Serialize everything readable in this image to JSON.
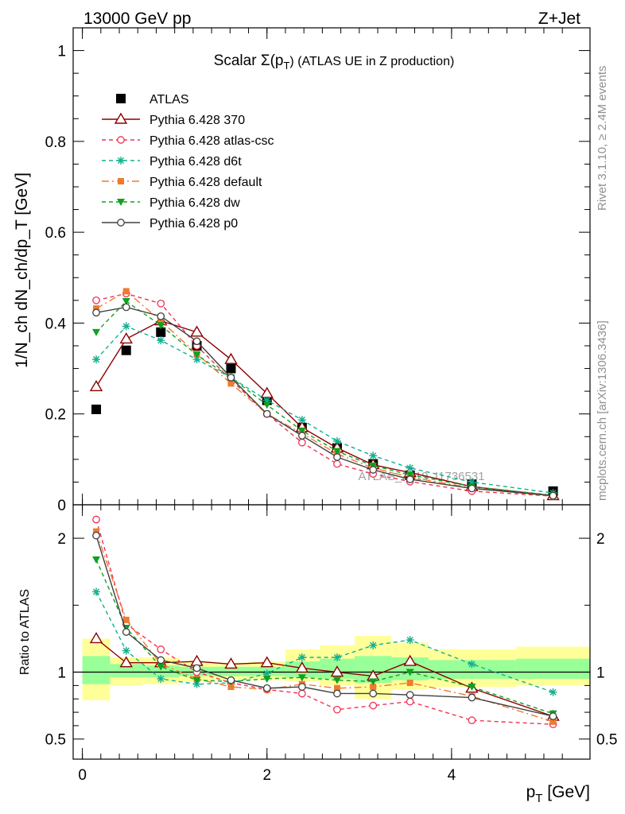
{
  "header": {
    "left": "13000 GeV pp",
    "right": "Z+Jet"
  },
  "side": {
    "rivet": "Rivet 3.1.10, ≥ 2.4M events",
    "mcplots": "mcplots.cern.ch [arXiv:1306.3436]"
  },
  "watermark": "ATLAS_2019_I1736531",
  "chart_data": [
    {
      "type": "scatter",
      "title": "Scalar Σ(p_T) (ATLAS UE in Z production)",
      "title_main": "Scalar Σ(p",
      "title_sub": "T",
      "title_tail": ") (ATLAS UE in Z production)",
      "ylabel": "1/N_ch dN_ch/dp_T [GeV]",
      "ylim": [
        0,
        1.05
      ],
      "xlim": [
        -0.1,
        5.5
      ],
      "yticks": [
        0,
        0.2,
        0.4,
        0.6,
        0.8,
        1
      ],
      "ytick_labels": [
        "0",
        "0.2",
        "0.4",
        "0.6",
        "0.8",
        "1"
      ],
      "legend_position": "top-left",
      "x": [
        0.15,
        0.475,
        0.85,
        1.24,
        1.61,
        2.0,
        2.38,
        2.76,
        3.15,
        3.55,
        4.22,
        5.1
      ],
      "series": [
        {
          "name": "ATLAS",
          "color": "#000000",
          "marker": "square",
          "line": "none",
          "values": [
            0.21,
            0.34,
            0.38,
            0.35,
            0.3,
            0.23,
            0.17,
            0.125,
            0.09,
            0.065,
            0.045,
            0.03
          ]
        },
        {
          "name": "Pythia 6.428 370",
          "color": "#8b0000",
          "marker": "open-triangle",
          "line": "solid",
          "values": [
            0.26,
            0.365,
            0.405,
            0.38,
            0.32,
            0.245,
            0.17,
            0.125,
            0.088,
            0.071,
            0.04,
            0.02
          ]
        },
        {
          "name": "Pythia 6.428 atlas-csc",
          "color": "#ee3355",
          "marker": "open-circle",
          "line": "dashed",
          "values": [
            0.45,
            0.465,
            0.443,
            0.35,
            0.275,
            0.2,
            0.137,
            0.09,
            0.068,
            0.051,
            0.03,
            0.019
          ]
        },
        {
          "name": "Pythia 6.428 d6t",
          "color": "#10b090",
          "marker": "star",
          "line": "dashed",
          "values": [
            0.32,
            0.393,
            0.362,
            0.32,
            0.28,
            0.23,
            0.187,
            0.14,
            0.108,
            0.081,
            0.05,
            0.026
          ]
        },
        {
          "name": "Pythia 6.428 default",
          "color": "#f07a30",
          "marker": "filled-square",
          "line": "dashdot",
          "values": [
            0.432,
            0.47,
            0.405,
            0.332,
            0.267,
            0.2,
            0.157,
            0.112,
            0.081,
            0.061,
            0.037,
            0.019
          ]
        },
        {
          "name": "Pythia 6.428 dw",
          "color": "#10a020",
          "marker": "filled-triangle-down",
          "line": "dashed",
          "values": [
            0.38,
            0.448,
            0.395,
            0.33,
            0.28,
            0.22,
            0.163,
            0.118,
            0.086,
            0.066,
            0.04,
            0.021
          ]
        },
        {
          "name": "Pythia 6.428 p0",
          "color": "#404040",
          "marker": "open-circle",
          "line": "solid",
          "values": [
            0.423,
            0.435,
            0.415,
            0.36,
            0.28,
            0.2,
            0.152,
            0.105,
            0.077,
            0.056,
            0.036,
            0.02
          ]
        }
      ]
    },
    {
      "type": "scatter",
      "ylabel": "Ratio to ATLAS",
      "xlabel": "p_T [GeV]",
      "xlabel_main": "p",
      "xlabel_sub": "T",
      "xlabel_tail": " [GeV]",
      "ylim": [
        0.35,
        2.25
      ],
      "xlim": [
        -0.1,
        5.5
      ],
      "yticks": [
        0.5,
        1,
        2
      ],
      "ytick_labels": [
        "0.5",
        "1",
        "2"
      ],
      "xticks": [
        0,
        2,
        4
      ],
      "xtick_labels": [
        "0",
        "2",
        "4"
      ],
      "reference_line": 1,
      "bins": [
        [
          0.0,
          0.3
        ],
        [
          0.3,
          0.65
        ],
        [
          0.65,
          1.05
        ],
        [
          1.05,
          1.42
        ],
        [
          1.42,
          1.8
        ],
        [
          1.8,
          2.2
        ],
        [
          2.2,
          2.57
        ],
        [
          2.57,
          2.95
        ],
        [
          2.95,
          3.35
        ],
        [
          3.35,
          3.75
        ],
        [
          3.75,
          4.7
        ],
        [
          4.7,
          5.5
        ]
      ],
      "band_outer_color": "#ffff99",
      "band_inner_color": "#99ff99",
      "band_outer": [
        [
          0.79,
          1.25
        ],
        [
          0.9,
          1.11
        ],
        [
          0.91,
          1.11
        ],
        [
          0.93,
          1.08
        ],
        [
          0.94,
          1.07
        ],
        [
          0.94,
          1.08
        ],
        [
          0.93,
          1.17
        ],
        [
          0.9,
          1.2
        ],
        [
          0.8,
          1.27
        ],
        [
          0.87,
          1.22
        ],
        [
          0.89,
          1.17
        ],
        [
          0.9,
          1.19
        ]
      ],
      "band_inner": [
        [
          0.91,
          1.12
        ],
        [
          0.96,
          1.06
        ],
        [
          0.96,
          1.05
        ],
        [
          0.97,
          1.04
        ],
        [
          0.97,
          1.04
        ],
        [
          0.97,
          1.04
        ],
        [
          0.96,
          1.08
        ],
        [
          0.95,
          1.1
        ],
        [
          0.92,
          1.12
        ],
        [
          0.94,
          1.11
        ],
        [
          0.95,
          1.09
        ],
        [
          0.95,
          1.1
        ]
      ],
      "x": [
        0.15,
        0.475,
        0.85,
        1.24,
        1.61,
        2.0,
        2.38,
        2.76,
        3.15,
        3.55,
        4.22,
        5.1
      ],
      "series": [
        {
          "name": "Pythia 6.428 370",
          "color": "#8b0000",
          "marker": "open-triangle",
          "line": "solid",
          "values": [
            1.25,
            1.07,
            1.07,
            1.08,
            1.06,
            1.07,
            1.03,
            1.0,
            0.97,
            1.08,
            0.88,
            0.67
          ]
        },
        {
          "name": "Pythia 6.428 atlas-csc",
          "color": "#ee3355",
          "marker": "open-circle",
          "line": "dashed",
          "values": [
            2.14,
            1.36,
            1.17,
            1.0,
            0.92,
            0.87,
            0.84,
            0.72,
            0.75,
            0.78,
            0.64,
            0.61
          ]
        },
        {
          "name": "Pythia 6.428 d6t",
          "color": "#10b090",
          "marker": "star",
          "line": "dashed",
          "values": [
            1.6,
            1.16,
            0.95,
            0.91,
            0.92,
            0.99,
            1.11,
            1.11,
            1.2,
            1.24,
            1.06,
            0.85
          ]
        },
        {
          "name": "Pythia 6.428 default",
          "color": "#f07a30",
          "marker": "filled-square",
          "line": "dashdot",
          "values": [
            2.05,
            1.39,
            1.06,
            0.95,
            0.89,
            0.87,
            0.91,
            0.88,
            0.89,
            0.92,
            0.82,
            0.63
          ]
        },
        {
          "name": "Pythia 6.428 dw",
          "color": "#10a020",
          "marker": "filled-triangle-down",
          "line": "dashed",
          "values": [
            1.84,
            1.33,
            1.04,
            0.94,
            0.93,
            0.95,
            0.96,
            0.94,
            0.93,
            1.0,
            0.89,
            0.69
          ]
        },
        {
          "name": "Pythia 6.428 p0",
          "color": "#404040",
          "marker": "open-circle",
          "line": "solid",
          "values": [
            2.02,
            1.3,
            1.09,
            1.03,
            0.94,
            0.88,
            0.89,
            0.84,
            0.84,
            0.83,
            0.81,
            0.67
          ]
        }
      ]
    }
  ]
}
